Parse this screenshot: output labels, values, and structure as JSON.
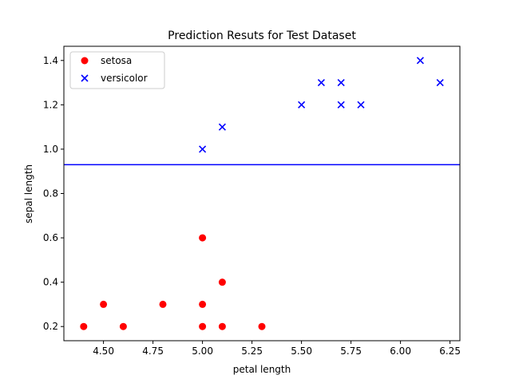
{
  "chart_data": {
    "type": "scatter",
    "title": "Prediction Resuts for Test Dataset",
    "xlabel": "petal length",
    "ylabel": "sepal length",
    "xlim": [
      4.3,
      6.3
    ],
    "ylim": [
      0.136,
      1.464
    ],
    "xticks": [
      4.5,
      4.75,
      5.0,
      5.25,
      5.5,
      5.75,
      6.0,
      6.25
    ],
    "xtick_labels": [
      "4.50",
      "4.75",
      "5.00",
      "5.25",
      "5.50",
      "5.75",
      "6.00",
      "6.25"
    ],
    "yticks": [
      0.2,
      0.4,
      0.6,
      0.8,
      1.0,
      1.2,
      1.4
    ],
    "ytick_labels": [
      "0.2",
      "0.4",
      "0.6",
      "0.8",
      "1.0",
      "1.2",
      "1.4"
    ],
    "grid": false,
    "legend_position": "top-left",
    "decision_boundary_y": 0.93,
    "boundary_color": "#0000ff",
    "series": [
      {
        "name": "setosa",
        "marker": "circle",
        "color": "#ff0000",
        "points": [
          [
            4.4,
            0.2
          ],
          [
            4.5,
            0.3
          ],
          [
            4.6,
            0.2
          ],
          [
            4.8,
            0.3
          ],
          [
            5.0,
            0.2
          ],
          [
            5.0,
            0.3
          ],
          [
            5.0,
            0.6
          ],
          [
            5.1,
            0.2
          ],
          [
            5.1,
            0.4
          ],
          [
            5.3,
            0.2
          ]
        ]
      },
      {
        "name": "versicolor",
        "marker": "x",
        "color": "#0000ff",
        "points": [
          [
            5.0,
            1.0
          ],
          [
            5.1,
            1.1
          ],
          [
            5.5,
            1.2
          ],
          [
            5.6,
            1.3
          ],
          [
            5.7,
            1.3
          ],
          [
            5.7,
            1.2
          ],
          [
            5.8,
            1.2
          ],
          [
            6.1,
            1.4
          ],
          [
            6.2,
            1.3
          ]
        ]
      }
    ]
  }
}
